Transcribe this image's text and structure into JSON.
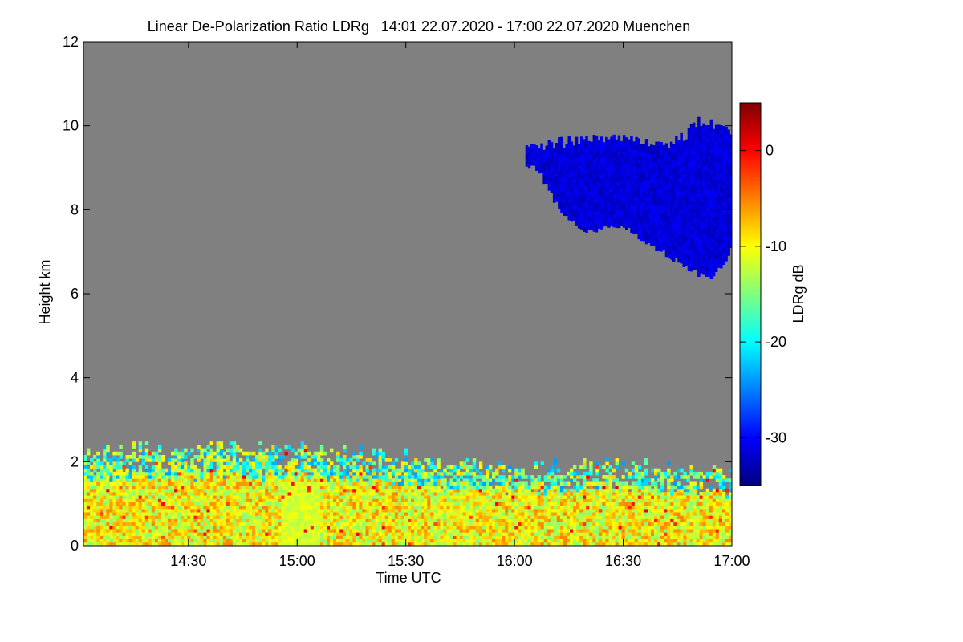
{
  "chart_data": {
    "type": "heatmap",
    "title": "Linear De-Polarization Ratio LDRg   14:01 22.07.2020 - 17:00 22.07.2020 Muenchen",
    "xlabel": "Time UTC",
    "ylabel": "Height km",
    "x_ticks": [
      "14:30",
      "15:00",
      "15:30",
      "16:00",
      "16:30",
      "17:00"
    ],
    "x_tick_hours": [
      14.5,
      15.0,
      15.5,
      16.0,
      16.5,
      17.0
    ],
    "xlim_hours": [
      14.017,
      17.0
    ],
    "y_ticks": [
      0,
      2,
      4,
      6,
      8,
      10,
      12
    ],
    "ylim": [
      0,
      12
    ],
    "colorbar": {
      "label": "LDRg dB",
      "range": [
        -35,
        5
      ],
      "ticks": [
        0,
        -10,
        -20,
        -30
      ],
      "colormap": "jet"
    },
    "background_color": "#808080",
    "regions": {
      "boundary_layer": {
        "time_range_hours": [
          14.017,
          17.0
        ],
        "top_km_at": [
          [
            14.017,
            2.2
          ],
          [
            14.5,
            2.3
          ],
          [
            15.0,
            2.3
          ],
          [
            15.5,
            2.1
          ],
          [
            16.0,
            1.8
          ],
          [
            16.5,
            1.9
          ],
          [
            17.0,
            1.7
          ]
        ],
        "typical_ldr_db": [
          -20,
          -8
        ]
      },
      "enhanced_layer": {
        "time_range_hours": [
          14.92,
          15.1
        ],
        "height_range_km": [
          0.0,
          1.5
        ],
        "typical_ldr_db": [
          -13,
          -10
        ]
      },
      "cirrus_cloud": {
        "time_range_hours": [
          16.05,
          17.0
        ],
        "base_km_at": [
          [
            16.1,
            9.0
          ],
          [
            16.2,
            8.0
          ],
          [
            16.3,
            7.5
          ],
          [
            16.5,
            7.6
          ],
          [
            16.7,
            6.9
          ],
          [
            16.9,
            6.3
          ],
          [
            17.0,
            7.1
          ]
        ],
        "top_km_at": [
          [
            16.1,
            9.4
          ],
          [
            16.3,
            9.6
          ],
          [
            16.5,
            9.6
          ],
          [
            16.7,
            9.4
          ],
          [
            16.85,
            10.0
          ],
          [
            17.0,
            9.8
          ]
        ],
        "typical_ldr_db": [
          -33,
          -30
        ]
      }
    }
  }
}
